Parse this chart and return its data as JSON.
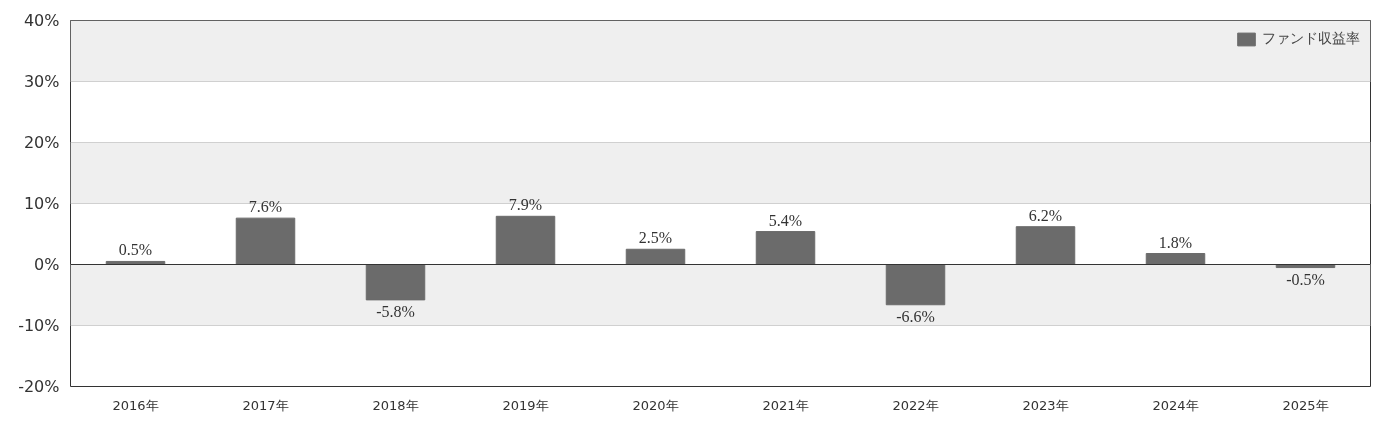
{
  "chart_data": {
    "type": "bar",
    "categories": [
      "2016年",
      "2017年",
      "2018年",
      "2019年",
      "2020年",
      "2021年",
      "2022年",
      "2023年",
      "2024年",
      "2025年"
    ],
    "series": [
      {
        "name": "ファンド収益率",
        "color": "#6b6b6b",
        "values": [
          0.5,
          7.6,
          -5.8,
          7.9,
          2.5,
          5.4,
          -6.6,
          6.2,
          1.8,
          -0.5
        ],
        "value_labels": [
          "0.5%",
          "7.6%",
          "-5.8%",
          "7.9%",
          "2.5%",
          "5.4%",
          "-6.6%",
          "6.2%",
          "1.8%",
          "-0.5%"
        ]
      }
    ],
    "ylim": [
      -20,
      40
    ],
    "yticks": [
      {
        "value": -20,
        "label": "-20%"
      },
      {
        "value": -10,
        "label": "-10%"
      },
      {
        "value": 0,
        "label": "0%"
      },
      {
        "value": 10,
        "label": "10%"
      },
      {
        "value": 20,
        "label": "20%"
      },
      {
        "value": 30,
        "label": "30%"
      },
      {
        "value": 40,
        "label": "40%"
      }
    ],
    "grid": "y",
    "legend": "top right"
  }
}
